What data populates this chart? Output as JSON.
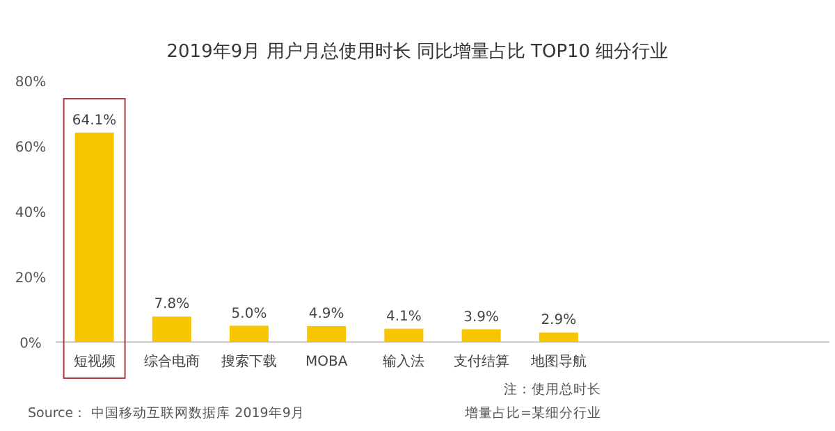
{
  "chart_data": {
    "type": "bar",
    "title": "2019年9月 用户月总使用时长 同比增量占比 TOP10 细分行业",
    "categories": [
      "短视频",
      "综合电商",
      "搜索下载",
      "MOBA",
      "输入法",
      "支付结算",
      "地图导航",
      null,
      null,
      null
    ],
    "values": [
      64.1,
      7.8,
      5.0,
      4.9,
      4.1,
      3.9,
      2.9,
      null,
      null,
      null
    ],
    "value_labels": [
      "64.1%",
      "7.8%",
      "5.0%",
      "4.9%",
      "4.1%",
      "3.9%",
      "2.9%",
      null,
      null,
      null
    ],
    "color": "#f7c600",
    "ylim": [
      0,
      80
    ],
    "yticks": [
      {
        "value": 0,
        "label": "0%"
      },
      {
        "value": 20,
        "label": "20%"
      },
      {
        "value": 40,
        "label": "40%"
      },
      {
        "value": 60,
        "label": "60%"
      },
      {
        "value": 80,
        "label": "80%"
      }
    ],
    "annotations": [
      "注：使用总时长",
      "Source： 中国移动互联网数据库 2019年9月",
      "增量占比=某细分行业"
    ]
  }
}
